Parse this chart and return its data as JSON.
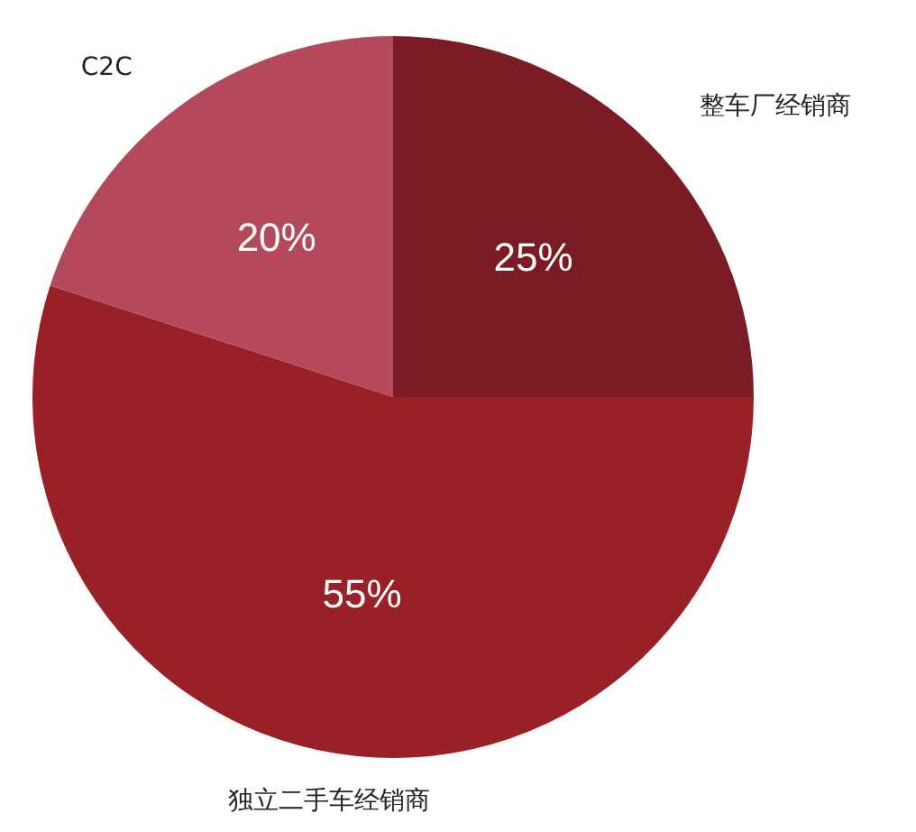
{
  "chart_data": {
    "type": "pie",
    "categories": [
      "整车厂经销商",
      "独立二手车经销商",
      "C2C"
    ],
    "values": [
      25,
      55,
      20
    ],
    "value_labels": [
      "25%",
      "55%",
      "20%"
    ],
    "colors": [
      "#7b1c24",
      "#9a2027",
      "#b3495a"
    ]
  }
}
